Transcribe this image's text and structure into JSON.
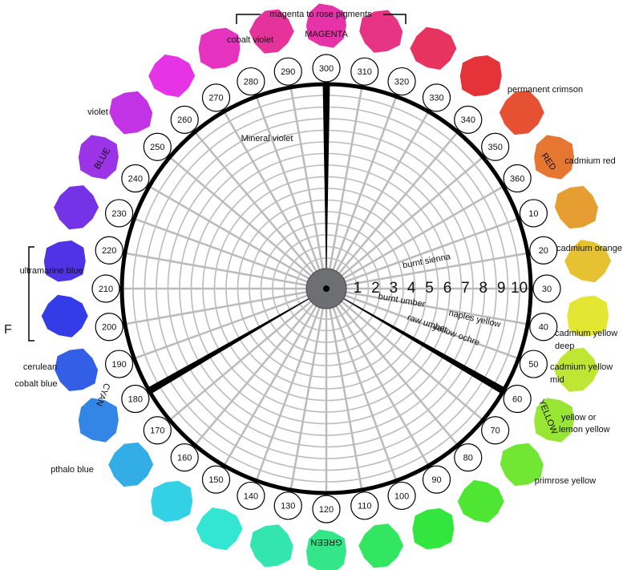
{
  "header": {
    "bracket_label": "magenta to rose pigments"
  },
  "hue_numbers": [
    10,
    20,
    30,
    40,
    50,
    60,
    70,
    80,
    90,
    100,
    110,
    120,
    130,
    140,
    150,
    160,
    170,
    180,
    190,
    200,
    210,
    220,
    230,
    240,
    250,
    260,
    270,
    280,
    290,
    300,
    310,
    320,
    330,
    340,
    350,
    360
  ],
  "scale_numbers": [
    1,
    2,
    3,
    4,
    5,
    6,
    7,
    8,
    9,
    10
  ],
  "wheel_labels": {
    "magenta": "MAGENTA",
    "red": "RED",
    "yellow": "YELLOW",
    "green": "GREEN",
    "cyan": "CYAN",
    "blue": "BLUE"
  },
  "pigments": {
    "cobalt_violet": "cobalt violet",
    "permanent_crimson": "permanent crimson",
    "cadmium_red": "cadmium red",
    "cadmium_orange": "cadmium orange",
    "cadmium_yellow_deep": [
      "cadmium yellow",
      "deep"
    ],
    "cadmium_yellow_mid": [
      "cadmium yellow",
      "mid"
    ],
    "lemon_yellow": [
      "yellow or",
      "lemon yellow"
    ],
    "primrose_yellow": "primrose yellow",
    "pthalo_blue": "pthalo blue",
    "cerulean": [
      "cerulean",
      "cobalt blue"
    ],
    "ultramarine_blue": "ultramarine blue",
    "violet": "violet"
  },
  "inner_pigments": {
    "mineral_violet": "Mineral violet",
    "burnt_sienna": "burnt sienna",
    "burnt_umber": "burnt umber",
    "naples_yellow": "naples yellow",
    "raw_umber": "raw umber",
    "yellow_ochre": "yellow ochre"
  },
  "side_letter": "F"
}
